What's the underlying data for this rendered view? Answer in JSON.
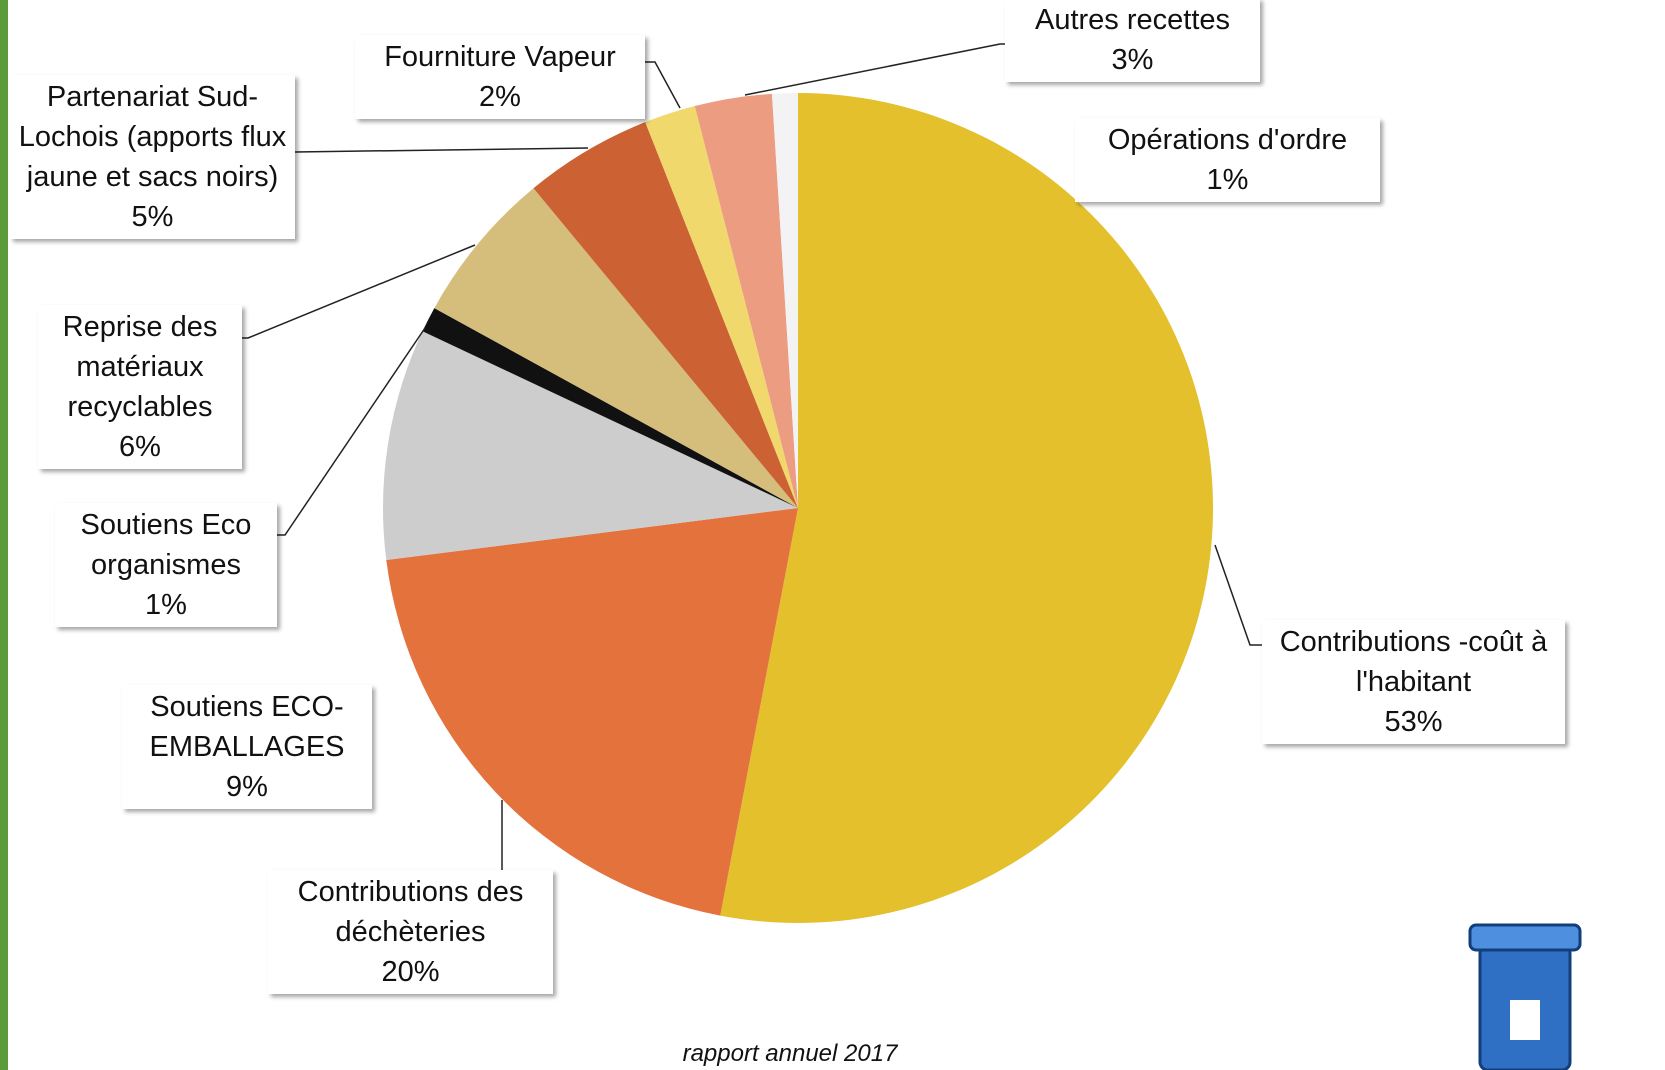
{
  "chart_data": {
    "type": "pie",
    "categories": [
      "Contributions -coût à l'habitant",
      "Contributions des déchèteries",
      "Soutiens ECO-EMBALLAGES",
      "Soutiens Eco organismes",
      "Reprise des matériaux recyclables",
      "Partenariat Sud-Lochois (apports flux jaune et sacs noirs)",
      "Fourniture Vapeur",
      "Autres recettes",
      "Opérations d'ordre"
    ],
    "values": [
      53,
      20,
      9,
      1,
      6,
      5,
      2,
      3,
      1
    ],
    "value_labels": [
      "53%",
      "20%",
      "9%",
      "1%",
      "6%",
      "5%",
      "2%",
      "3%",
      "1%"
    ],
    "colors": [
      "#e3c02c",
      "#e4723c",
      "#cdcdcd",
      "#111111",
      "#d5bd7c",
      "#cc6233",
      "#f1d86c",
      "#ec9c80",
      "#f3f3f3"
    ]
  },
  "footer": "rapport annuel 2017"
}
